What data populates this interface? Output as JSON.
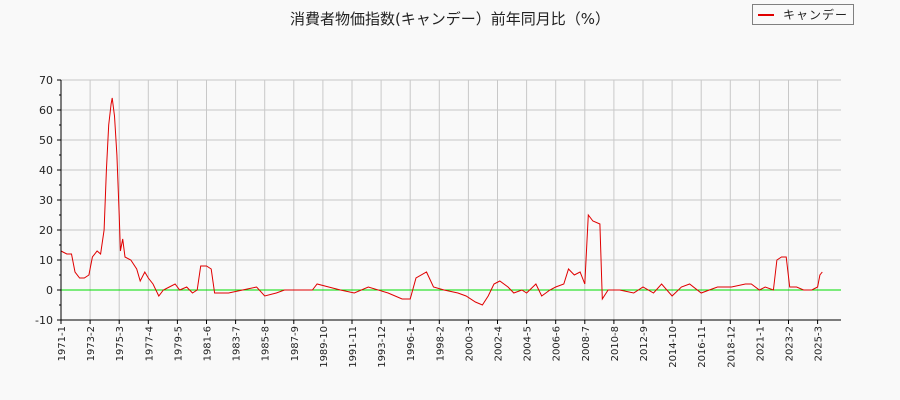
{
  "title": "消費者物価指数(キャンデー）前年同月比（%）",
  "legend": {
    "label": "キャンデー",
    "color": "#e00000"
  },
  "colors": {
    "series": "#e00000",
    "zero_line": "#00dd00",
    "grid": "#c8c8c8",
    "axis": "#000000",
    "background": "#f9f9f9"
  },
  "chart_data": {
    "type": "line",
    "title": "消費者物価指数(キャンデー）前年同月比（%）",
    "xlabel": "",
    "ylabel": "",
    "ylim": [
      -10,
      70
    ],
    "yticks": [
      -10,
      0,
      10,
      20,
      30,
      40,
      50,
      60,
      70
    ],
    "xticks": [
      "1971-1",
      "1973-2",
      "1975-3",
      "1977-4",
      "1979-5",
      "1981-6",
      "1983-7",
      "1985-8",
      "1987-9",
      "1989-10",
      "1991-11",
      "1993-12",
      "1996-1",
      "1998-2",
      "2000-3",
      "2002-4",
      "2004-5",
      "2006-6",
      "2008-7",
      "2010-8",
      "2012-9",
      "2014-10",
      "2016-11",
      "2018-12",
      "2021-1",
      "2023-2",
      "2025-3"
    ],
    "grid": true,
    "legend_position": "top-right",
    "series": [
      {
        "name": "キャンデー",
        "points": [
          [
            "1971-1",
            13
          ],
          [
            "1971-6",
            12
          ],
          [
            "1971-10",
            12
          ],
          [
            "1972-1",
            6
          ],
          [
            "1972-5",
            4
          ],
          [
            "1972-9",
            4
          ],
          [
            "1973-1",
            5
          ],
          [
            "1973-4",
            11
          ],
          [
            "1973-8",
            13
          ],
          [
            "1973-11",
            12
          ],
          [
            "1974-2",
            20
          ],
          [
            "1974-4",
            40
          ],
          [
            "1974-6",
            55
          ],
          [
            "1974-8",
            62
          ],
          [
            "1974-9",
            64
          ],
          [
            "1974-11",
            58
          ],
          [
            "1975-1",
            45
          ],
          [
            "1975-3",
            25
          ],
          [
            "1975-4",
            13
          ],
          [
            "1975-6",
            17
          ],
          [
            "1975-8",
            11
          ],
          [
            "1976-1",
            10
          ],
          [
            "1976-6",
            7
          ],
          [
            "1976-9",
            3
          ],
          [
            "1977-1",
            6
          ],
          [
            "1977-4",
            4
          ],
          [
            "1977-8",
            2
          ],
          [
            "1978-1",
            -2
          ],
          [
            "1978-5",
            0
          ],
          [
            "1978-10",
            1
          ],
          [
            "1979-3",
            2
          ],
          [
            "1979-7",
            0
          ],
          [
            "1980-1",
            1
          ],
          [
            "1980-6",
            -1
          ],
          [
            "1980-10",
            0
          ],
          [
            "1981-1",
            8
          ],
          [
            "1981-6",
            8
          ],
          [
            "1981-10",
            7
          ],
          [
            "1982-1",
            -1
          ],
          [
            "1982-6",
            -1
          ],
          [
            "1983-1",
            -1
          ],
          [
            "1984-1",
            0
          ],
          [
            "1985-1",
            1
          ],
          [
            "1985-8",
            -2
          ],
          [
            "1986-6",
            -1
          ],
          [
            "1987-1",
            0
          ],
          [
            "1988-1",
            0
          ],
          [
            "1989-1",
            0
          ],
          [
            "1989-5",
            2
          ],
          [
            "1990-3",
            1
          ],
          [
            "1991-1",
            0
          ],
          [
            "1992-1",
            -1
          ],
          [
            "1993-1",
            1
          ],
          [
            "1994-6",
            -1
          ],
          [
            "1995-6",
            -3
          ],
          [
            "1996-1",
            -3
          ],
          [
            "1996-6",
            4
          ],
          [
            "1997-3",
            6
          ],
          [
            "1997-9",
            1
          ],
          [
            "1998-6",
            0
          ],
          [
            "1999-6",
            -1
          ],
          [
            "2000-1",
            -2
          ],
          [
            "2000-9",
            -4
          ],
          [
            "2001-3",
            -5
          ],
          [
            "2001-8",
            -2
          ],
          [
            "2002-1",
            2
          ],
          [
            "2002-6",
            3
          ],
          [
            "2003-1",
            1
          ],
          [
            "2003-6",
            -1
          ],
          [
            "2004-1",
            0
          ],
          [
            "2004-5",
            -1
          ],
          [
            "2005-1",
            2
          ],
          [
            "2005-6",
            -2
          ],
          [
            "2006-1",
            0
          ],
          [
            "2006-6",
            1
          ],
          [
            "2007-1",
            2
          ],
          [
            "2007-5",
            7
          ],
          [
            "2007-10",
            5
          ],
          [
            "2008-3",
            6
          ],
          [
            "2008-7",
            2
          ],
          [
            "2008-10",
            25
          ],
          [
            "2009-2",
            23
          ],
          [
            "2009-8",
            22
          ],
          [
            "2009-10",
            -3
          ],
          [
            "2010-3",
            0
          ],
          [
            "2011-1",
            0
          ],
          [
            "2012-1",
            -1
          ],
          [
            "2012-9",
            1
          ],
          [
            "2013-6",
            -1
          ],
          [
            "2014-1",
            2
          ],
          [
            "2014-10",
            -2
          ],
          [
            "2015-6",
            1
          ],
          [
            "2016-1",
            2
          ],
          [
            "2016-11",
            -1
          ],
          [
            "2017-6",
            0
          ],
          [
            "2018-1",
            1
          ],
          [
            "2019-1",
            1
          ],
          [
            "2020-1",
            2
          ],
          [
            "2020-6",
            2
          ],
          [
            "2021-1",
            0
          ],
          [
            "2021-6",
            1
          ],
          [
            "2022-1",
            0
          ],
          [
            "2022-4",
            10
          ],
          [
            "2022-8",
            11
          ],
          [
            "2022-12",
            11
          ],
          [
            "2023-3",
            1
          ],
          [
            "2023-9",
            1
          ],
          [
            "2024-3",
            0
          ],
          [
            "2024-10",
            0
          ],
          [
            "2025-3",
            1
          ],
          [
            "2025-5",
            5
          ],
          [
            "2025-7",
            6
          ]
        ]
      }
    ]
  }
}
